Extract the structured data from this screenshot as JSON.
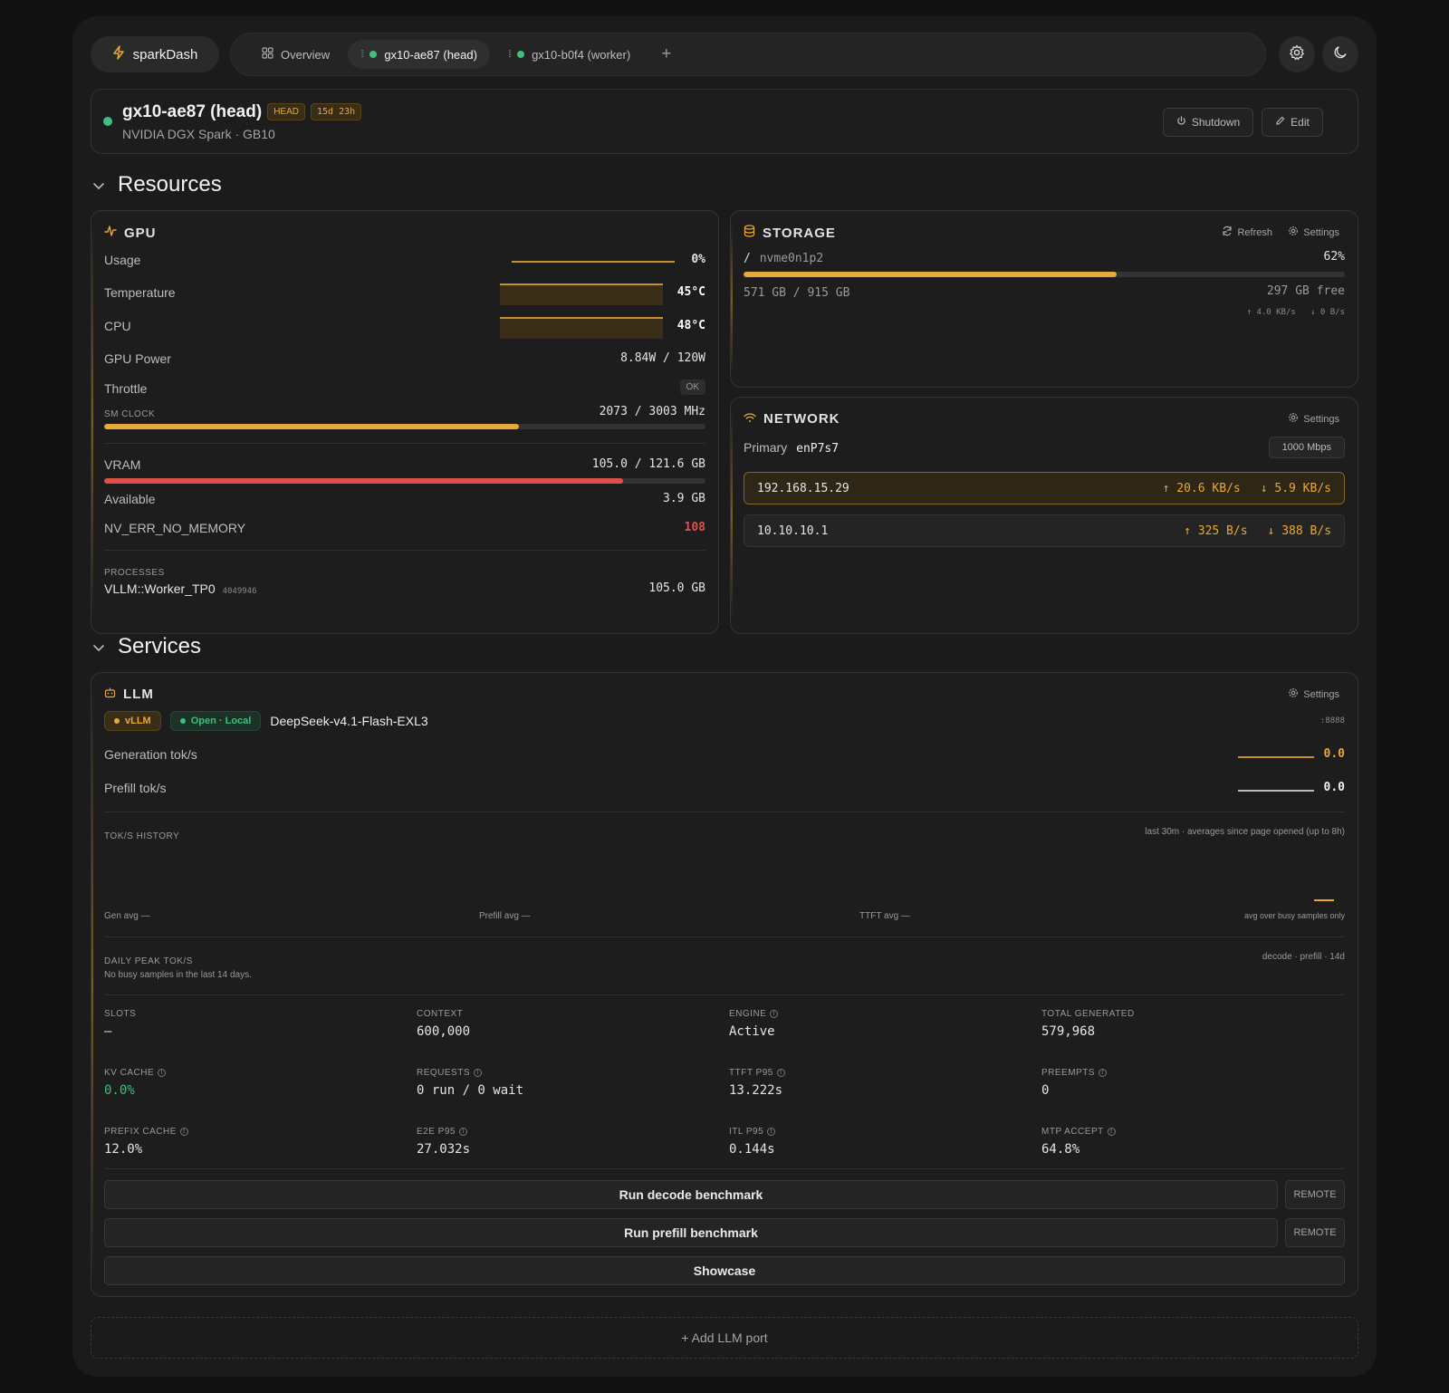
{
  "brand": {
    "name": "sparkDash"
  },
  "tabs": [
    {
      "label": "Overview"
    },
    {
      "label": "gx10-ae87 (head)"
    },
    {
      "label": "gx10-b0f4 (worker)"
    }
  ],
  "tab_add": "+",
  "node": {
    "title": "gx10-ae87 (head)",
    "role_badge": "HEAD",
    "uptime_badge": "15d 23h",
    "subtitle": "NVIDIA DGX Spark · GB10",
    "shutdown_label": "Shutdown",
    "edit_label": "Edit"
  },
  "sections": {
    "resources": "Resources",
    "services": "Services"
  },
  "gpu": {
    "title": "GPU",
    "usage": {
      "label": "Usage",
      "value": "0%"
    },
    "temperature": {
      "label": "Temperature",
      "value": "45°C"
    },
    "cpu": {
      "label": "CPU",
      "value": "48°C"
    },
    "power": {
      "label": "GPU Power",
      "value": "8.84W / 120W"
    },
    "throttle": {
      "label": "Throttle",
      "value": "OK"
    },
    "sm_clock": {
      "label": "SM CLOCK",
      "value": "2073 / 3003 MHz",
      "fraction": 0.69
    },
    "vram": {
      "label": "VRAM",
      "value": "105.0 / 121.6 GB",
      "fraction": 0.863
    },
    "available": {
      "label": "Available",
      "value": "3.9 GB"
    },
    "nv_err": {
      "label": "NV_ERR_NO_MEMORY",
      "value": "108"
    },
    "processes": {
      "label": "PROCESSES",
      "items": [
        {
          "name": "VLLM::Worker_TP0",
          "pid": "4049946",
          "mem": "105.0 GB"
        }
      ]
    }
  },
  "storage": {
    "title": "STORAGE",
    "refresh_label": "Refresh",
    "settings_label": "Settings",
    "mount": "/",
    "device": "nvme0n1p2",
    "percent": "62%",
    "fraction": 0.62,
    "used": "571 GB / 915 GB",
    "free": "297 GB free",
    "read_rate": "↑ 4.0 KB/s",
    "write_rate": "↓ 0 B/s"
  },
  "network": {
    "title": "NETWORK",
    "settings_label": "Settings",
    "primary_label": "Primary",
    "primary_iface": "enP7s7",
    "speed": "1000 Mbps",
    "interfaces": [
      {
        "ip": "192.168.15.29",
        "up": "↑ 20.6 KB/s",
        "down": "↓ 5.9 KB/s"
      },
      {
        "ip": "10.10.10.1",
        "up": "↑ 325 B/s",
        "down": "↓ 388 B/s"
      }
    ]
  },
  "llm": {
    "title": "LLM",
    "settings_label": "Settings",
    "engine_pill": "vLLM",
    "status_pill": "Open · Local",
    "model": "DeepSeek-v4.1-Flash-EXL3",
    "port": ":8888",
    "generation": {
      "label": "Generation tok/s",
      "value": "0.0"
    },
    "prefill": {
      "label": "Prefill tok/s",
      "value": "0.0"
    },
    "history": {
      "label": "TOK/S HISTORY",
      "note": "last 30m · averages since page opened (up to 8h)",
      "gen_avg": "Gen avg —",
      "prefill_avg": "Prefill avg —",
      "ttft_avg": "TTFT avg —",
      "busy_note": "avg over busy samples only"
    },
    "daily_peak": {
      "label": "DAILY PEAK TOK/S",
      "note": "decode · prefill · 14d",
      "empty": "No busy samples in the last 14 days."
    },
    "metrics": [
      {
        "label": "SLOTS",
        "value": "—",
        "info": false
      },
      {
        "label": "CONTEXT",
        "value": "600,000",
        "info": false
      },
      {
        "label": "ENGINE",
        "value": "Active",
        "info": true
      },
      {
        "label": "TOTAL GENERATED",
        "value": "579,968",
        "info": false
      },
      {
        "label": "KV CACHE",
        "value": "0.0%",
        "info": true,
        "accent": "#3fbf7f"
      },
      {
        "label": "REQUESTS",
        "value": "0 run / 0 wait",
        "info": true
      },
      {
        "label": "TTFT P95",
        "value": "13.222s",
        "info": true
      },
      {
        "label": "PREEMPTS",
        "value": "0",
        "info": true
      },
      {
        "label": "PREFIX CACHE",
        "value": "12.0%",
        "info": true
      },
      {
        "label": "E2E P95",
        "value": "27.032s",
        "info": true
      },
      {
        "label": "ITL P95",
        "value": "0.144s",
        "info": true
      },
      {
        "label": "MTP ACCEPT",
        "value": "64.8%",
        "info": true
      }
    ],
    "decode_benchmark": "Run decode benchmark",
    "prefill_benchmark": "Run prefill benchmark",
    "remote_label": "REMOTE",
    "showcase": "Showcase"
  },
  "add_port": "+ Add LLM port",
  "colors": {
    "accent": "#e7a93a",
    "danger": "#e0504a",
    "ok": "#3fbf7f"
  }
}
